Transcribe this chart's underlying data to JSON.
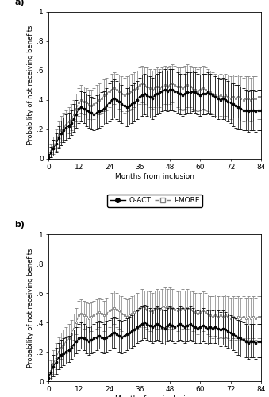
{
  "panel_a": {
    "x": [
      0,
      1,
      2,
      3,
      4,
      5,
      6,
      7,
      8,
      9,
      10,
      11,
      12,
      13,
      14,
      15,
      16,
      17,
      18,
      19,
      20,
      21,
      22,
      23,
      24,
      25,
      26,
      27,
      28,
      29,
      30,
      31,
      32,
      33,
      34,
      35,
      36,
      37,
      38,
      39,
      40,
      41,
      42,
      43,
      44,
      45,
      46,
      47,
      48,
      49,
      50,
      51,
      52,
      53,
      54,
      55,
      56,
      57,
      58,
      59,
      60,
      61,
      62,
      63,
      64,
      65,
      66,
      67,
      68,
      69,
      70,
      71,
      72,
      73,
      74,
      75,
      76,
      77,
      78,
      79,
      80,
      81,
      82,
      83,
      84
    ],
    "oact_mean": [
      0.01,
      0.04,
      0.07,
      0.1,
      0.14,
      0.17,
      0.19,
      0.21,
      0.22,
      0.24,
      0.27,
      0.3,
      0.34,
      0.35,
      0.34,
      0.33,
      0.32,
      0.31,
      0.3,
      0.31,
      0.32,
      0.33,
      0.34,
      0.36,
      0.38,
      0.4,
      0.41,
      0.4,
      0.39,
      0.37,
      0.36,
      0.35,
      0.36,
      0.37,
      0.38,
      0.4,
      0.42,
      0.43,
      0.44,
      0.43,
      0.42,
      0.41,
      0.43,
      0.44,
      0.45,
      0.46,
      0.47,
      0.46,
      0.47,
      0.47,
      0.46,
      0.45,
      0.44,
      0.43,
      0.44,
      0.45,
      0.45,
      0.46,
      0.45,
      0.44,
      0.43,
      0.44,
      0.44,
      0.45,
      0.44,
      0.43,
      0.42,
      0.41,
      0.4,
      0.41,
      0.4,
      0.39,
      0.38,
      0.37,
      0.36,
      0.35,
      0.34,
      0.33,
      0.33,
      0.32,
      0.33,
      0.33,
      0.32,
      0.33,
      0.33
    ],
    "oact_lo": [
      0.0,
      0.01,
      0.02,
      0.04,
      0.07,
      0.09,
      0.11,
      0.13,
      0.14,
      0.16,
      0.18,
      0.21,
      0.24,
      0.25,
      0.24,
      0.22,
      0.21,
      0.2,
      0.19,
      0.2,
      0.21,
      0.22,
      0.23,
      0.24,
      0.25,
      0.27,
      0.28,
      0.27,
      0.25,
      0.24,
      0.23,
      0.22,
      0.23,
      0.24,
      0.25,
      0.27,
      0.28,
      0.29,
      0.3,
      0.29,
      0.28,
      0.27,
      0.29,
      0.3,
      0.31,
      0.32,
      0.33,
      0.32,
      0.33,
      0.33,
      0.32,
      0.31,
      0.3,
      0.29,
      0.3,
      0.31,
      0.31,
      0.32,
      0.31,
      0.3,
      0.29,
      0.3,
      0.3,
      0.31,
      0.3,
      0.29,
      0.28,
      0.27,
      0.26,
      0.27,
      0.26,
      0.25,
      0.24,
      0.22,
      0.21,
      0.2,
      0.2,
      0.19,
      0.19,
      0.18,
      0.19,
      0.19,
      0.18,
      0.19,
      0.19
    ],
    "oact_hi": [
      0.03,
      0.08,
      0.13,
      0.17,
      0.22,
      0.26,
      0.28,
      0.3,
      0.31,
      0.33,
      0.37,
      0.4,
      0.44,
      0.46,
      0.45,
      0.44,
      0.43,
      0.42,
      0.41,
      0.43,
      0.44,
      0.45,
      0.46,
      0.48,
      0.51,
      0.53,
      0.54,
      0.53,
      0.52,
      0.5,
      0.49,
      0.48,
      0.49,
      0.5,
      0.51,
      0.53,
      0.55,
      0.57,
      0.58,
      0.57,
      0.56,
      0.55,
      0.57,
      0.58,
      0.59,
      0.6,
      0.61,
      0.6,
      0.61,
      0.61,
      0.6,
      0.59,
      0.58,
      0.57,
      0.58,
      0.59,
      0.59,
      0.6,
      0.59,
      0.58,
      0.57,
      0.58,
      0.58,
      0.59,
      0.58,
      0.57,
      0.56,
      0.55,
      0.54,
      0.55,
      0.54,
      0.53,
      0.52,
      0.51,
      0.5,
      0.5,
      0.49,
      0.48,
      0.47,
      0.46,
      0.47,
      0.47,
      0.46,
      0.47,
      0.47
    ],
    "imore_mean": [
      0.01,
      0.05,
      0.08,
      0.12,
      0.16,
      0.19,
      0.21,
      0.23,
      0.25,
      0.27,
      0.3,
      0.34,
      0.38,
      0.4,
      0.39,
      0.38,
      0.37,
      0.36,
      0.37,
      0.38,
      0.4,
      0.41,
      0.43,
      0.44,
      0.46,
      0.47,
      0.48,
      0.47,
      0.46,
      0.44,
      0.43,
      0.44,
      0.45,
      0.46,
      0.47,
      0.48,
      0.5,
      0.51,
      0.5,
      0.49,
      0.48,
      0.47,
      0.48,
      0.49,
      0.48,
      0.49,
      0.5,
      0.49,
      0.5,
      0.51,
      0.5,
      0.49,
      0.49,
      0.48,
      0.49,
      0.5,
      0.49,
      0.48,
      0.47,
      0.46,
      0.47,
      0.48,
      0.47,
      0.46,
      0.45,
      0.44,
      0.43,
      0.42,
      0.43,
      0.42,
      0.43,
      0.42,
      0.41,
      0.42,
      0.41,
      0.42,
      0.41,
      0.4,
      0.41,
      0.41,
      0.4,
      0.41,
      0.41,
      0.42,
      0.42
    ],
    "imore_lo": [
      0.0,
      0.01,
      0.03,
      0.05,
      0.08,
      0.11,
      0.13,
      0.15,
      0.17,
      0.19,
      0.22,
      0.25,
      0.29,
      0.31,
      0.3,
      0.28,
      0.27,
      0.26,
      0.27,
      0.28,
      0.3,
      0.31,
      0.32,
      0.33,
      0.35,
      0.36,
      0.37,
      0.36,
      0.34,
      0.32,
      0.31,
      0.32,
      0.33,
      0.34,
      0.35,
      0.36,
      0.37,
      0.38,
      0.37,
      0.36,
      0.35,
      0.34,
      0.35,
      0.36,
      0.35,
      0.36,
      0.37,
      0.36,
      0.37,
      0.38,
      0.36,
      0.35,
      0.34,
      0.33,
      0.34,
      0.35,
      0.35,
      0.34,
      0.33,
      0.32,
      0.33,
      0.34,
      0.33,
      0.32,
      0.31,
      0.3,
      0.29,
      0.28,
      0.29,
      0.28,
      0.29,
      0.28,
      0.27,
      0.28,
      0.26,
      0.28,
      0.26,
      0.25,
      0.26,
      0.26,
      0.25,
      0.26,
      0.26,
      0.27,
      0.27
    ],
    "imore_hi": [
      0.03,
      0.1,
      0.15,
      0.2,
      0.25,
      0.29,
      0.31,
      0.33,
      0.35,
      0.37,
      0.4,
      0.44,
      0.48,
      0.5,
      0.49,
      0.48,
      0.47,
      0.47,
      0.48,
      0.5,
      0.51,
      0.52,
      0.54,
      0.55,
      0.57,
      0.58,
      0.59,
      0.58,
      0.57,
      0.56,
      0.55,
      0.56,
      0.57,
      0.58,
      0.59,
      0.6,
      0.62,
      0.63,
      0.62,
      0.62,
      0.61,
      0.6,
      0.61,
      0.62,
      0.61,
      0.62,
      0.63,
      0.62,
      0.63,
      0.64,
      0.63,
      0.62,
      0.62,
      0.62,
      0.63,
      0.64,
      0.63,
      0.62,
      0.62,
      0.61,
      0.62,
      0.63,
      0.62,
      0.61,
      0.6,
      0.59,
      0.58,
      0.57,
      0.58,
      0.57,
      0.58,
      0.57,
      0.56,
      0.57,
      0.56,
      0.57,
      0.56,
      0.55,
      0.56,
      0.56,
      0.55,
      0.56,
      0.56,
      0.57,
      0.57
    ]
  },
  "panel_b": {
    "x": [
      0,
      1,
      2,
      3,
      4,
      5,
      6,
      7,
      8,
      9,
      10,
      11,
      12,
      13,
      14,
      15,
      16,
      17,
      18,
      19,
      20,
      21,
      22,
      23,
      24,
      25,
      26,
      27,
      28,
      29,
      30,
      31,
      32,
      33,
      34,
      35,
      36,
      37,
      38,
      39,
      40,
      41,
      42,
      43,
      44,
      45,
      46,
      47,
      48,
      49,
      50,
      51,
      52,
      53,
      54,
      55,
      56,
      57,
      58,
      59,
      60,
      61,
      62,
      63,
      64,
      65,
      66,
      67,
      68,
      69,
      70,
      71,
      72,
      73,
      74,
      75,
      76,
      77,
      78,
      79,
      80,
      81,
      82,
      83,
      84
    ],
    "oact_mean": [
      0.02,
      0.06,
      0.1,
      0.13,
      0.16,
      0.18,
      0.19,
      0.2,
      0.21,
      0.23,
      0.25,
      0.27,
      0.29,
      0.3,
      0.29,
      0.28,
      0.27,
      0.28,
      0.29,
      0.3,
      0.31,
      0.3,
      0.29,
      0.3,
      0.31,
      0.32,
      0.33,
      0.32,
      0.31,
      0.3,
      0.31,
      0.32,
      0.33,
      0.34,
      0.35,
      0.37,
      0.38,
      0.39,
      0.4,
      0.39,
      0.38,
      0.37,
      0.38,
      0.39,
      0.38,
      0.37,
      0.36,
      0.38,
      0.39,
      0.38,
      0.37,
      0.38,
      0.39,
      0.38,
      0.37,
      0.38,
      0.39,
      0.38,
      0.37,
      0.36,
      0.37,
      0.38,
      0.37,
      0.36,
      0.37,
      0.36,
      0.37,
      0.36,
      0.35,
      0.36,
      0.35,
      0.34,
      0.33,
      0.32,
      0.31,
      0.3,
      0.29,
      0.28,
      0.27,
      0.26,
      0.27,
      0.27,
      0.26,
      0.27,
      0.27
    ],
    "oact_lo": [
      0.0,
      0.01,
      0.03,
      0.05,
      0.08,
      0.1,
      0.11,
      0.12,
      0.13,
      0.15,
      0.17,
      0.19,
      0.21,
      0.22,
      0.21,
      0.19,
      0.18,
      0.19,
      0.2,
      0.21,
      0.22,
      0.2,
      0.19,
      0.2,
      0.21,
      0.22,
      0.23,
      0.22,
      0.2,
      0.19,
      0.2,
      0.21,
      0.22,
      0.23,
      0.24,
      0.26,
      0.27,
      0.28,
      0.29,
      0.28,
      0.27,
      0.26,
      0.27,
      0.28,
      0.27,
      0.26,
      0.25,
      0.27,
      0.28,
      0.27,
      0.26,
      0.27,
      0.28,
      0.27,
      0.26,
      0.27,
      0.28,
      0.27,
      0.26,
      0.25,
      0.26,
      0.27,
      0.26,
      0.25,
      0.26,
      0.25,
      0.26,
      0.25,
      0.24,
      0.25,
      0.24,
      0.23,
      0.22,
      0.21,
      0.2,
      0.18,
      0.17,
      0.17,
      0.16,
      0.15,
      0.16,
      0.16,
      0.15,
      0.16,
      0.16
    ],
    "oact_hi": [
      0.05,
      0.12,
      0.18,
      0.23,
      0.26,
      0.28,
      0.29,
      0.3,
      0.31,
      0.33,
      0.35,
      0.37,
      0.39,
      0.4,
      0.39,
      0.38,
      0.37,
      0.38,
      0.39,
      0.4,
      0.41,
      0.4,
      0.39,
      0.41,
      0.42,
      0.43,
      0.44,
      0.43,
      0.42,
      0.41,
      0.42,
      0.43,
      0.44,
      0.45,
      0.46,
      0.48,
      0.5,
      0.51,
      0.52,
      0.51,
      0.5,
      0.49,
      0.5,
      0.51,
      0.5,
      0.49,
      0.48,
      0.5,
      0.51,
      0.5,
      0.49,
      0.5,
      0.51,
      0.5,
      0.49,
      0.5,
      0.51,
      0.5,
      0.49,
      0.48,
      0.49,
      0.5,
      0.49,
      0.48,
      0.49,
      0.48,
      0.49,
      0.48,
      0.47,
      0.48,
      0.47,
      0.46,
      0.45,
      0.44,
      0.43,
      0.42,
      0.41,
      0.4,
      0.39,
      0.38,
      0.39,
      0.39,
      0.38,
      0.39,
      0.39
    ],
    "imore_mean": [
      0.02,
      0.07,
      0.12,
      0.16,
      0.2,
      0.23,
      0.25,
      0.27,
      0.29,
      0.32,
      0.36,
      0.4,
      0.45,
      0.46,
      0.45,
      0.44,
      0.43,
      0.44,
      0.45,
      0.46,
      0.47,
      0.46,
      0.45,
      0.46,
      0.48,
      0.49,
      0.5,
      0.49,
      0.48,
      0.46,
      0.45,
      0.44,
      0.45,
      0.46,
      0.47,
      0.48,
      0.5,
      0.51,
      0.5,
      0.49,
      0.48,
      0.47,
      0.49,
      0.5,
      0.49,
      0.5,
      0.51,
      0.5,
      0.51,
      0.5,
      0.49,
      0.48,
      0.49,
      0.5,
      0.49,
      0.5,
      0.49,
      0.48,
      0.47,
      0.46,
      0.47,
      0.48,
      0.47,
      0.46,
      0.45,
      0.44,
      0.45,
      0.44,
      0.45,
      0.44,
      0.45,
      0.44,
      0.43,
      0.44,
      0.43,
      0.44,
      0.43,
      0.44,
      0.43,
      0.44,
      0.43,
      0.44,
      0.43,
      0.44,
      0.44
    ],
    "imore_lo": [
      0.0,
      0.02,
      0.05,
      0.08,
      0.12,
      0.15,
      0.17,
      0.19,
      0.21,
      0.24,
      0.28,
      0.32,
      0.37,
      0.38,
      0.36,
      0.35,
      0.33,
      0.34,
      0.35,
      0.36,
      0.37,
      0.35,
      0.34,
      0.35,
      0.37,
      0.38,
      0.39,
      0.37,
      0.36,
      0.34,
      0.33,
      0.32,
      0.33,
      0.34,
      0.35,
      0.36,
      0.37,
      0.38,
      0.37,
      0.36,
      0.34,
      0.33,
      0.35,
      0.36,
      0.35,
      0.36,
      0.37,
      0.36,
      0.37,
      0.36,
      0.35,
      0.34,
      0.35,
      0.36,
      0.35,
      0.36,
      0.35,
      0.34,
      0.33,
      0.32,
      0.33,
      0.34,
      0.33,
      0.32,
      0.31,
      0.29,
      0.31,
      0.29,
      0.3,
      0.29,
      0.3,
      0.29,
      0.28,
      0.29,
      0.28,
      0.29,
      0.28,
      0.29,
      0.28,
      0.29,
      0.28,
      0.29,
      0.28,
      0.29,
      0.29
    ],
    "imore_hi": [
      0.06,
      0.14,
      0.21,
      0.26,
      0.3,
      0.33,
      0.35,
      0.37,
      0.39,
      0.42,
      0.46,
      0.5,
      0.55,
      0.56,
      0.55,
      0.54,
      0.53,
      0.54,
      0.55,
      0.56,
      0.57,
      0.56,
      0.55,
      0.57,
      0.59,
      0.6,
      0.62,
      0.6,
      0.59,
      0.58,
      0.57,
      0.56,
      0.57,
      0.58,
      0.59,
      0.6,
      0.62,
      0.63,
      0.62,
      0.62,
      0.61,
      0.6,
      0.62,
      0.63,
      0.62,
      0.63,
      0.64,
      0.63,
      0.64,
      0.63,
      0.62,
      0.61,
      0.62,
      0.63,
      0.62,
      0.63,
      0.62,
      0.61,
      0.6,
      0.59,
      0.6,
      0.61,
      0.6,
      0.59,
      0.58,
      0.58,
      0.59,
      0.58,
      0.59,
      0.58,
      0.59,
      0.58,
      0.57,
      0.58,
      0.57,
      0.58,
      0.57,
      0.58,
      0.57,
      0.58,
      0.57,
      0.58,
      0.57,
      0.58,
      0.58
    ]
  },
  "xlabel": "Months from inclusion",
  "ylabel": "Probability of not receiving benefits",
  "xticks": [
    0,
    12,
    24,
    36,
    48,
    60,
    72,
    84
  ],
  "yticks": [
    0,
    0.2,
    0.4,
    0.6,
    0.8,
    1.0
  ],
  "ytick_labels": [
    "0",
    ".2",
    ".4",
    ".6",
    ".8",
    "1"
  ],
  "xlim": [
    0,
    84
  ],
  "ylim": [
    0,
    1.0
  ],
  "oact_color": "#000000",
  "imore_color": "#7f7f7f",
  "panel_labels": [
    "a)",
    "b)"
  ],
  "legend_labels": [
    "O-ACT",
    "I-MORE"
  ],
  "background_color": "#ffffff",
  "fig_width": 3.39,
  "fig_height": 5.0,
  "dpi": 100
}
